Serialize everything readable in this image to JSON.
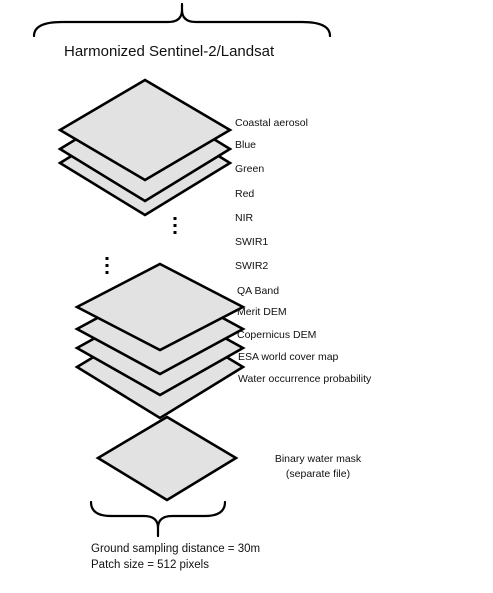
{
  "stack_title": "Harmonized Sentinel-2/Landsat",
  "bands": [
    "Coastal aerosol",
    "Blue",
    "Green",
    "Red",
    "NIR",
    "SWIR1",
    "SWIR2",
    "QA Band",
    "Merit DEM",
    "Copernicus DEM",
    "ESA world cover map",
    "Water occurrence probability"
  ],
  "mask": {
    "line1": "Binary water mask",
    "line2": "(separate file)"
  },
  "info": {
    "gsd": "Ground sampling distance = 30m",
    "patch": "Patch size = 512 pixels"
  }
}
